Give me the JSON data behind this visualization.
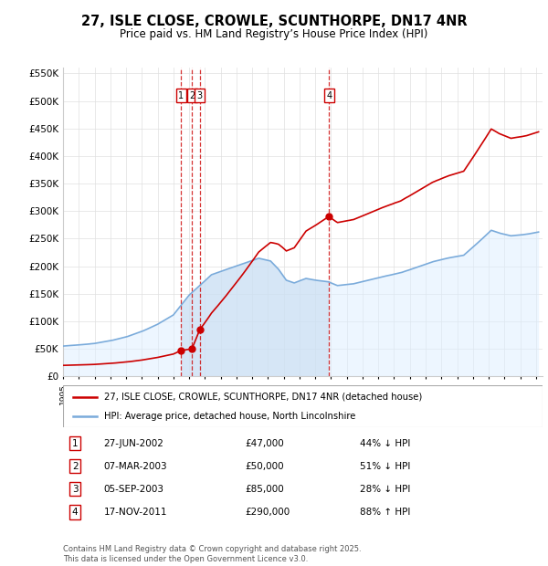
{
  "title": "27, ISLE CLOSE, CROWLE, SCUNTHORPE, DN17 4NR",
  "subtitle": "Price paid vs. HM Land Registry’s House Price Index (HPI)",
  "property_label": "27, ISLE CLOSE, CROWLE, SCUNTHORPE, DN17 4NR (detached house)",
  "hpi_label": "HPI: Average price, detached house, North Lincolnshire",
  "property_color": "#cc0000",
  "hpi_color": "#7aabdb",
  "hpi_fill_color": "#ddeeff",
  "background_color": "#ffffff",
  "sale_dates": [
    "2002-06-27",
    "2003-03-07",
    "2003-09-05",
    "2011-11-17"
  ],
  "sale_prices": [
    47000,
    50000,
    85000,
    290000
  ],
  "sale_labels": [
    "1",
    "2",
    "3",
    "4"
  ],
  "sale_table": [
    {
      "num": "1",
      "date": "27-JUN-2002",
      "price": "£47,000",
      "hpi_diff": "44% ↓ HPI"
    },
    {
      "num": "2",
      "date": "07-MAR-2003",
      "price": "£50,000",
      "hpi_diff": "51% ↓ HPI"
    },
    {
      "num": "3",
      "date": "05-SEP-2003",
      "price": "£85,000",
      "hpi_diff": "28% ↓ HPI"
    },
    {
      "num": "4",
      "date": "17-NOV-2011",
      "price": "£290,000",
      "hpi_diff": "88% ↑ HPI"
    }
  ],
  "footer": "Contains HM Land Registry data © Crown copyright and database right 2025.\nThis data is licensed under the Open Government Licence v3.0.",
  "yticks": [
    0,
    50000,
    100000,
    150000,
    200000,
    250000,
    300000,
    350000,
    400000,
    450000,
    500000,
    550000
  ],
  "ytick_labels": [
    "£0",
    "£50K",
    "£100K",
    "£150K",
    "£200K",
    "£250K",
    "£300K",
    "£350K",
    "£400K",
    "£450K",
    "£500K",
    "£550K"
  ]
}
